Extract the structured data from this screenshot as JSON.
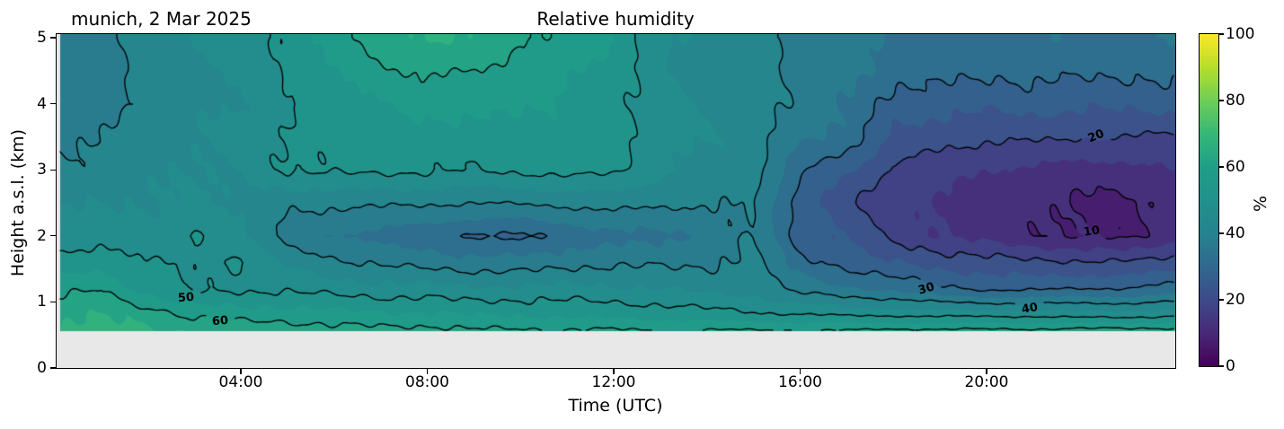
{
  "figure": {
    "subtitle": "munich, 2 Mar 2025",
    "title": "Relative humidity",
    "background": "#ffffff"
  },
  "axes": {
    "xlabel": "Time (UTC)",
    "ylabel": "Height a.s.l. (km)",
    "x_range_hours": [
      0,
      24
    ],
    "y_range_km": [
      0,
      5.05
    ],
    "plot_background": "#e8e8e8",
    "x_ticks": [
      {
        "hour": 4,
        "label": "04:00"
      },
      {
        "hour": 8,
        "label": "08:00"
      },
      {
        "hour": 12,
        "label": "12:00"
      },
      {
        "hour": 16,
        "label": "16:00"
      },
      {
        "hour": 20,
        "label": "20:00"
      }
    ],
    "y_ticks": [
      {
        "km": 0,
        "label": "0"
      },
      {
        "km": 1,
        "label": "1"
      },
      {
        "km": 2,
        "label": "2"
      },
      {
        "km": 3,
        "label": "3"
      },
      {
        "km": 4,
        "label": "4"
      },
      {
        "km": 5,
        "label": "5"
      }
    ]
  },
  "colorbar": {
    "label": "%",
    "range": [
      0,
      100
    ],
    "colormap": "viridis",
    "ticks": [
      {
        "value": 0,
        "label": "0"
      },
      {
        "value": 20,
        "label": "20"
      },
      {
        "value": 40,
        "label": "40"
      },
      {
        "value": 60,
        "label": "60"
      },
      {
        "value": 80,
        "label": "80"
      },
      {
        "value": 100,
        "label": "100"
      }
    ],
    "viridis_stops": [
      "#440154",
      "#482878",
      "#3e4a89",
      "#31688e",
      "#26828e",
      "#21918c",
      "#1f9e89",
      "#35b779",
      "#6ece58",
      "#b5de2b",
      "#fde725"
    ]
  },
  "chart_data": {
    "type": "heatmap",
    "title": "Relative humidity",
    "xlabel": "Time (UTC)",
    "ylabel": "Height a.s.l. (km)",
    "units": "%",
    "location": "munich",
    "date": "2 Mar 2025",
    "x_hours": [
      0,
      1,
      2,
      3,
      4,
      5,
      6,
      7,
      8,
      9,
      10,
      11,
      12,
      13,
      14,
      15,
      16,
      17,
      18,
      19,
      20,
      21,
      22,
      23,
      24
    ],
    "heights_km": [
      0.55,
      0.8,
      1.2,
      1.6,
      2.0,
      2.5,
      3.0,
      3.5,
      4.0,
      4.5,
      5.0
    ],
    "surface_height_km": 0.57,
    "start_hour": 0.125,
    "fill_band_step_percent": 5,
    "values_percent_by_hour": [
      [
        66,
        64,
        58,
        52,
        47,
        44,
        41,
        39,
        37,
        36,
        36
      ],
      [
        67,
        65,
        60,
        53,
        48,
        45,
        42,
        39.5,
        38,
        37,
        37
      ],
      [
        66,
        63,
        53,
        50,
        46,
        45,
        44,
        43,
        42,
        42,
        43
      ],
      [
        65,
        59,
        49,
        49.5,
        51,
        46,
        45,
        45,
        44,
        44,
        45
      ],
      [
        64,
        58,
        49,
        51,
        46,
        44,
        45,
        46,
        45,
        46,
        47
      ],
      [
        63,
        58,
        49,
        44,
        38,
        41,
        50.5,
        51,
        49,
        50.5,
        52
      ],
      [
        62,
        57,
        48,
        41,
        35,
        41,
        51,
        52,
        52,
        55,
        58
      ],
      [
        62,
        56,
        47,
        39,
        33,
        41,
        51,
        53,
        55,
        59,
        63
      ],
      [
        62,
        56,
        47,
        38,
        32,
        40.5,
        51,
        53,
        57,
        61,
        66
      ],
      [
        61,
        55,
        46,
        37,
        29,
        40.2,
        50,
        52,
        57,
        60,
        64
      ],
      [
        61,
        55,
        46,
        37,
        29,
        40.5,
        51,
        53,
        56,
        58,
        61
      ],
      [
        61,
        54,
        47,
        38,
        32,
        41,
        52,
        53,
        54,
        56,
        59
      ],
      [
        61,
        54,
        46,
        39,
        33,
        42,
        51,
        52,
        52,
        53,
        55
      ],
      [
        60.5,
        53,
        45,
        39,
        34,
        41,
        46,
        48,
        47,
        46,
        46
      ],
      [
        61,
        52,
        44,
        39,
        36,
        40.2,
        43,
        45,
        44,
        43,
        44
      ],
      [
        61,
        51,
        43,
        41,
        40.5,
        40.5,
        42,
        43,
        43,
        42,
        43
      ],
      [
        61,
        50.5,
        38,
        32,
        28,
        27,
        31,
        36,
        38,
        39,
        38
      ],
      [
        61,
        49.5,
        36,
        28,
        24,
        21,
        26,
        33,
        35,
        37,
        37
      ],
      [
        62,
        49.5,
        34,
        25,
        19,
        16,
        19,
        24,
        28,
        32,
        35
      ],
      [
        62,
        49,
        31,
        23,
        15,
        14,
        17,
        22,
        27,
        32,
        34
      ],
      [
        62,
        49,
        29,
        22,
        13,
        12,
        15,
        21,
        26,
        31,
        34
      ],
      [
        62,
        49,
        29,
        21,
        11,
        11,
        14,
        21,
        27,
        32,
        35
      ],
      [
        63,
        48,
        30,
        20.5,
        9.5,
        9,
        13,
        20.2,
        26,
        31,
        34
      ],
      [
        63,
        48,
        30,
        20.5,
        9,
        9,
        13,
        20.2,
        26,
        31,
        34
      ],
      [
        63,
        49,
        32,
        22,
        13,
        12,
        15,
        19,
        27,
        32,
        35
      ]
    ],
    "contour_levels": [
      10,
      20,
      30,
      40,
      50,
      60
    ],
    "contour_labels": [
      {
        "text": "50",
        "level": 50,
        "t_hour": 2.82,
        "height_km": 1.06,
        "rotation_deg": -4
      },
      {
        "text": "60",
        "level": 60,
        "t_hour": 3.56,
        "height_km": 0.71,
        "rotation_deg": -4
      },
      {
        "text": "30",
        "level": 30,
        "t_hour": 18.7,
        "height_km": 1.2,
        "rotation_deg": -16
      },
      {
        "text": "40",
        "level": 40,
        "t_hour": 20.92,
        "height_km": 0.9,
        "rotation_deg": -10
      },
      {
        "text": "20",
        "level": 20,
        "t_hour": 22.36,
        "height_km": 3.51,
        "rotation_deg": -22
      },
      {
        "text": "10",
        "level": 10,
        "t_hour": 22.25,
        "height_km": 2.07,
        "rotation_deg": -8
      }
    ]
  }
}
